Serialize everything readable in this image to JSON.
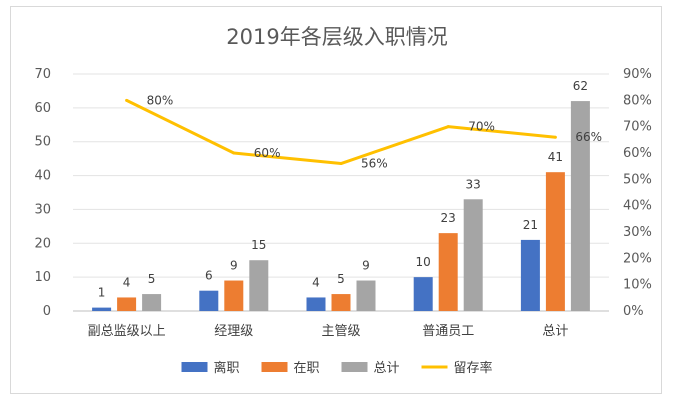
{
  "chart_data": {
    "type": "bar",
    "title": "2019年各层级入职情况",
    "categories": [
      "副总监级以上",
      "经理级",
      "主管级",
      "普通员工",
      "总计"
    ],
    "series": [
      {
        "name": "离职",
        "kind": "bar",
        "axis": "left",
        "color": "#4472C4",
        "values": [
          1,
          6,
          4,
          10,
          21
        ],
        "labels": [
          "1",
          "6",
          "4",
          "10",
          "21"
        ]
      },
      {
        "name": "在职",
        "kind": "bar",
        "axis": "left",
        "color": "#ED7D31",
        "values": [
          4,
          9,
          5,
          23,
          41
        ],
        "labels": [
          "4",
          "9",
          "5",
          "23",
          "41"
        ]
      },
      {
        "name": "总计",
        "kind": "bar",
        "axis": "left",
        "color": "#A5A5A5",
        "values": [
          5,
          15,
          9,
          33,
          62
        ],
        "labels": [
          "5",
          "15",
          "9",
          "33",
          "62"
        ]
      },
      {
        "name": "留存率",
        "kind": "line",
        "axis": "right",
        "color": "#FFC000",
        "values": [
          0.8,
          0.6,
          0.56,
          0.7,
          0.66
        ],
        "labels": [
          "80%",
          "60%",
          "56%",
          "70%",
          "66%"
        ]
      }
    ],
    "y_left": {
      "min": 0,
      "max": 70,
      "step": 10,
      "ticks": [
        "0",
        "10",
        "20",
        "30",
        "40",
        "50",
        "60",
        "70"
      ]
    },
    "y_right": {
      "min": 0,
      "max": 0.9,
      "step": 0.1,
      "ticks": [
        "0%",
        "10%",
        "20%",
        "30%",
        "40%",
        "50%",
        "60%",
        "70%",
        "80%",
        "90%"
      ]
    },
    "grid": true,
    "legend_position": "bottom"
  }
}
